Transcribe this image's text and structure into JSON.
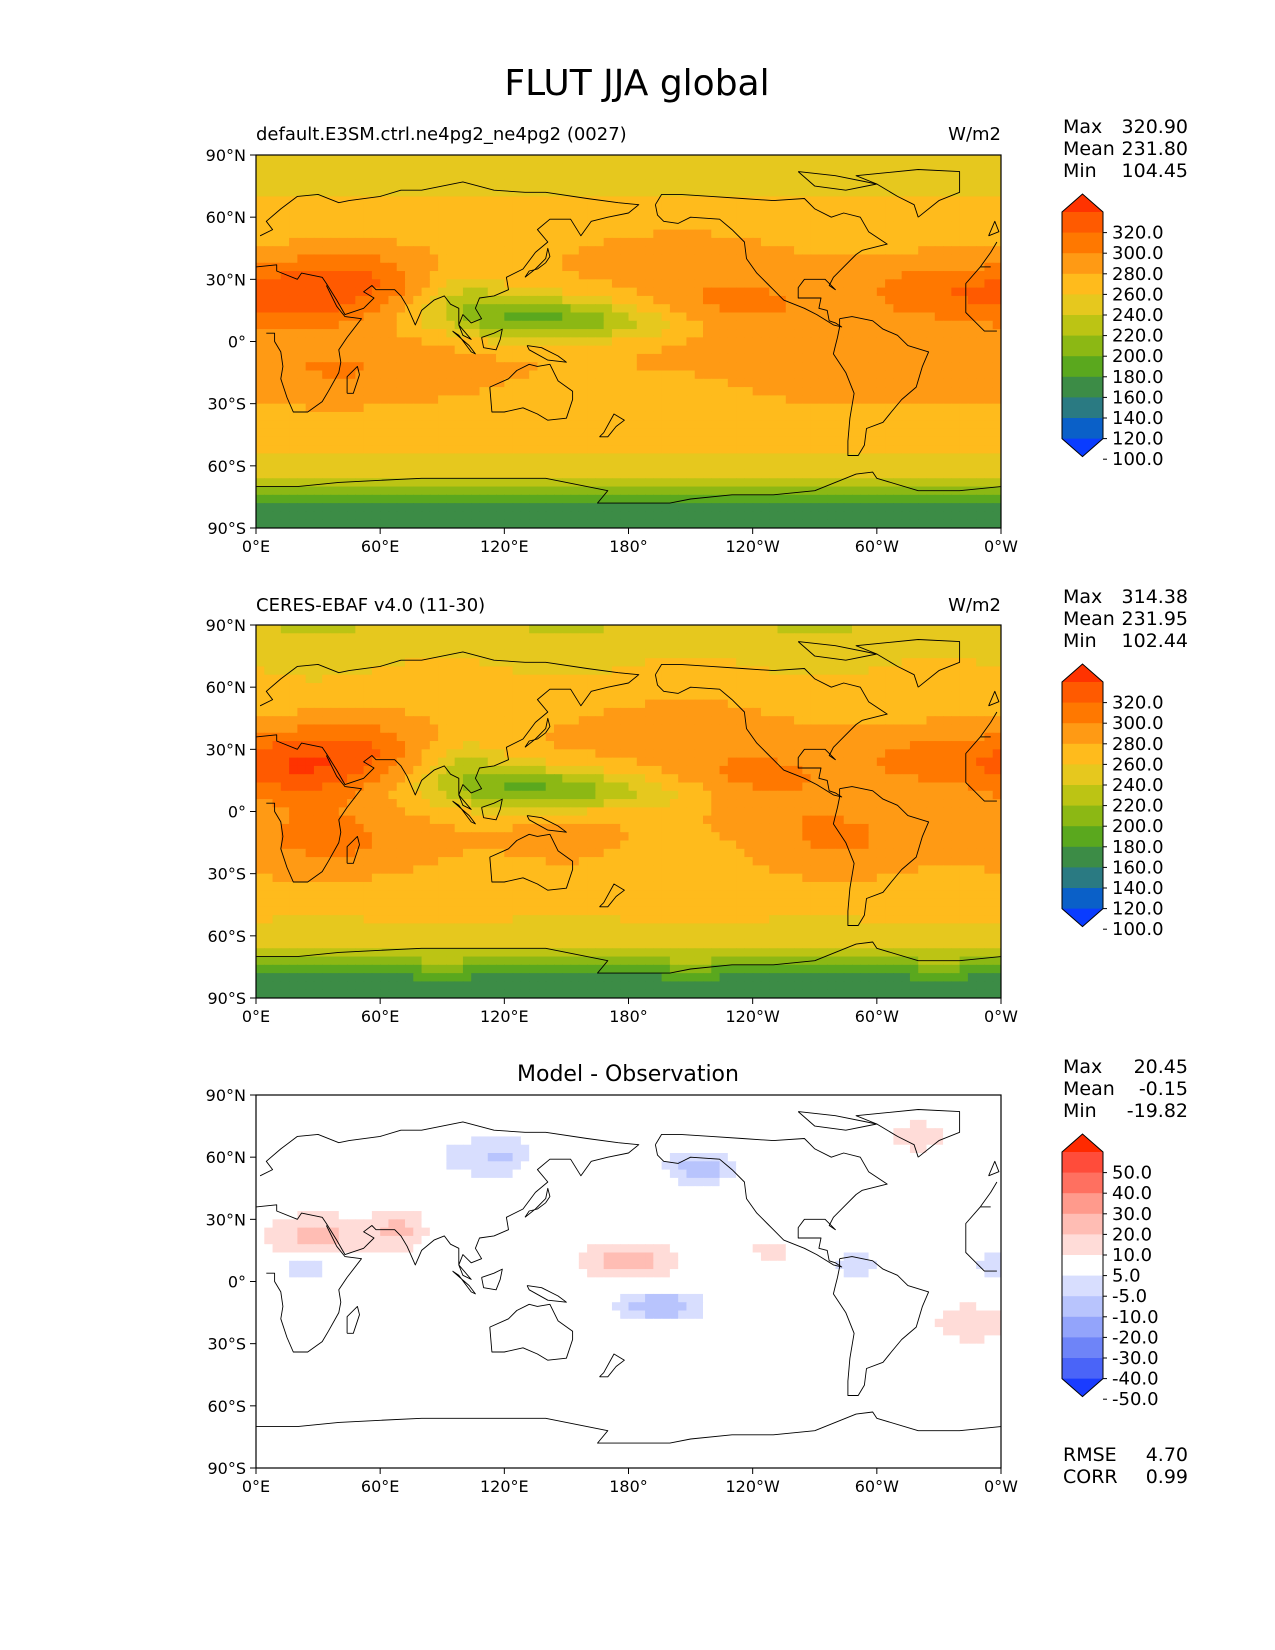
{
  "figure": {
    "title": "FLUT JJA global"
  },
  "axes": {
    "y_ticks": [
      "90°N",
      "60°N",
      "30°N",
      "0°",
      "30°S",
      "60°S",
      "90°S"
    ],
    "x_ticks": [
      "0°E",
      "60°E",
      "120°E",
      "180°",
      "120°W",
      "60°W",
      "0°W"
    ]
  },
  "panels": [
    {
      "left_title": "default.E3SM.ctrl.ne4pg2_ne4pg2 (0027)",
      "center_title": "",
      "units": "W/m2",
      "stats": [
        {
          "label": "Max",
          "value": "320.90"
        },
        {
          "label": "Mean",
          "value": "231.80"
        },
        {
          "label": "Min",
          "value": "104.45"
        }
      ],
      "colorbar": {
        "labels": [
          "320.0",
          "300.0",
          "280.0",
          "260.0",
          "240.0",
          "220.0",
          "200.0",
          "180.0",
          "160.0",
          "140.0",
          "120.0",
          "100.0"
        ],
        "colors": [
          "#ff3300",
          "#ff5a00",
          "#ff7800",
          "#ff9a14",
          "#ffbb1c",
          "#e6c81e",
          "#bcc414",
          "#8cb814",
          "#5aa81e",
          "#3c8c46",
          "#2a7a82",
          "#0a60c8",
          "#0a3cff"
        ]
      },
      "field": "model"
    },
    {
      "left_title": "CERES-EBAF v4.0 (11-30)",
      "center_title": "",
      "units": "W/m2",
      "stats": [
        {
          "label": "Max",
          "value": "314.38"
        },
        {
          "label": "Mean",
          "value": "231.95"
        },
        {
          "label": "Min",
          "value": "102.44"
        }
      ],
      "colorbar": {
        "labels": [
          "320.0",
          "300.0",
          "280.0",
          "260.0",
          "240.0",
          "220.0",
          "200.0",
          "180.0",
          "160.0",
          "140.0",
          "120.0",
          "100.0"
        ],
        "colors": [
          "#ff3300",
          "#ff5a00",
          "#ff7800",
          "#ff9a14",
          "#ffbb1c",
          "#e6c81e",
          "#bcc414",
          "#8cb814",
          "#5aa81e",
          "#3c8c46",
          "#2a7a82",
          "#0a60c8",
          "#0a3cff"
        ]
      },
      "field": "obs"
    },
    {
      "left_title": "",
      "center_title": "Model - Observation",
      "units": "",
      "stats": [
        {
          "label": "Max",
          "value": "20.45"
        },
        {
          "label": "Mean",
          "value": "-0.15"
        },
        {
          "label": "Min",
          "value": "-19.82"
        }
      ],
      "colorbar": {
        "labels": [
          "50.0",
          "40.0",
          "30.0",
          "20.0",
          "10.0",
          "5.0",
          "-5.0",
          "-10.0",
          "-20.0",
          "-30.0",
          "-40.0",
          "-50.0"
        ],
        "colors": [
          "#ff2a00",
          "#ff4c3a",
          "#ff7060",
          "#ff9a8c",
          "#ffbdb4",
          "#ffdcd8",
          "#ffffff",
          "#d8defe",
          "#b8c4fd",
          "#93a4fb",
          "#6e84f8",
          "#4a64f8",
          "#1a3cff"
        ]
      },
      "extra_stats": [
        {
          "label": "RMSE",
          "value": "4.70"
        },
        {
          "label": "CORR",
          "value": "0.99"
        }
      ],
      "field": "diff"
    }
  ]
}
